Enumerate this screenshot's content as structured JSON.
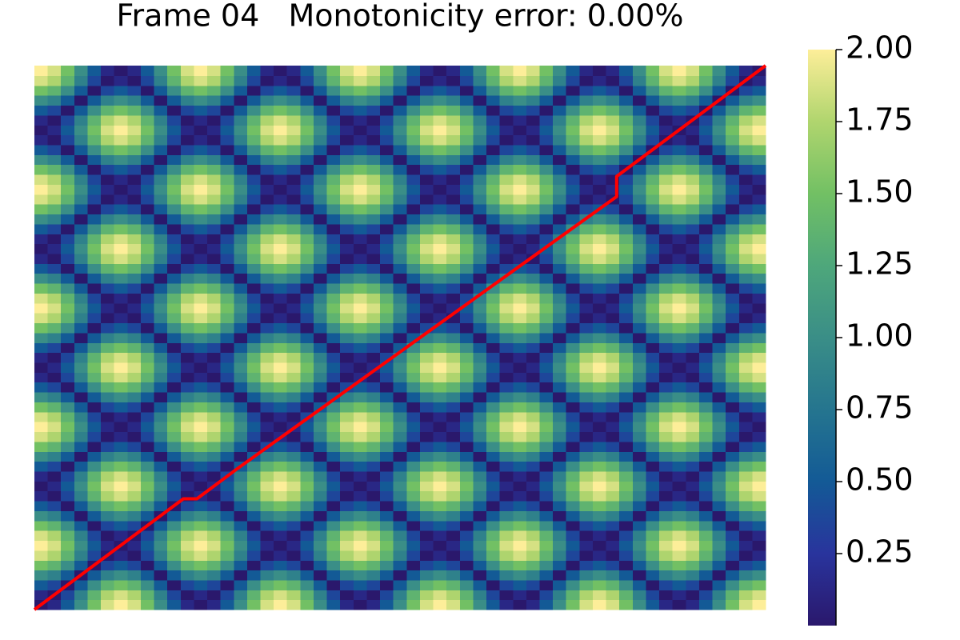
{
  "chart_data": {
    "type": "heatmap",
    "title": "Frame 04   Monotonicity error: 0.00%",
    "x_signal": [
      1,
      0.87,
      0.5,
      0,
      -0.5,
      -0.87,
      -1,
      -0.87,
      -0.5,
      0,
      0.5,
      0.87,
      1,
      0.87,
      0.5,
      0,
      -0.5,
      -0.87,
      -1,
      -0.87,
      -0.5,
      0,
      0.5,
      0.87,
      1,
      0.87,
      0.5,
      0,
      -0.5,
      -0.87,
      -1,
      -0.87,
      -0.5,
      0,
      0.5,
      0.87,
      1,
      0.87,
      0.5,
      0,
      -0.5,
      -0.87,
      -1,
      -0.87,
      -0.5,
      0,
      0.5,
      0.87,
      1,
      0.87,
      0.5,
      0,
      -0.5,
      -0.87,
      -1
    ],
    "y_signal": [
      1,
      0.87,
      0.5,
      0,
      -0.5,
      -0.87,
      -1,
      -0.87,
      -0.5,
      0,
      0.5,
      0.87,
      1,
      0.87,
      0.5,
      0,
      -0.5,
      -0.87,
      -1,
      -0.87,
      -0.5,
      0,
      0.5,
      0.87,
      1,
      0.87,
      0.5,
      0,
      -0.5,
      -0.87,
      -1,
      -0.87,
      -0.5,
      0,
      0.5,
      0.87,
      1,
      0.87,
      0.5,
      0,
      -0.5,
      -0.87,
      -1,
      -0.87,
      -0.5,
      0,
      0.5,
      0.87,
      1,
      0.87,
      0.5,
      0,
      -0.5,
      -0.87,
      -1
    ],
    "path": {
      "color": "#ff0000",
      "x": [
        0,
        11,
        12,
        15,
        43,
        43,
        54
      ],
      "y": [
        0,
        11,
        11,
        14,
        41,
        43,
        54
      ]
    },
    "colormap": [
      "#2a186c",
      "#29349d",
      "#135a96",
      "#25758f",
      "#3a8e87",
      "#4ea77b",
      "#72c064",
      "#b0d56e",
      "#fdee99"
    ],
    "clim": [
      0,
      2
    ],
    "cticks": [
      0.25,
      {
        "value": 0.5,
        "label": "0.50"
      },
      0.75,
      {
        "value": 1,
        "label": "1.00"
      },
      1.25,
      {
        "value": 1.5,
        "label": "1.50"
      },
      1.75,
      {
        "value": 2,
        "label": "2.00"
      }
    ]
  }
}
